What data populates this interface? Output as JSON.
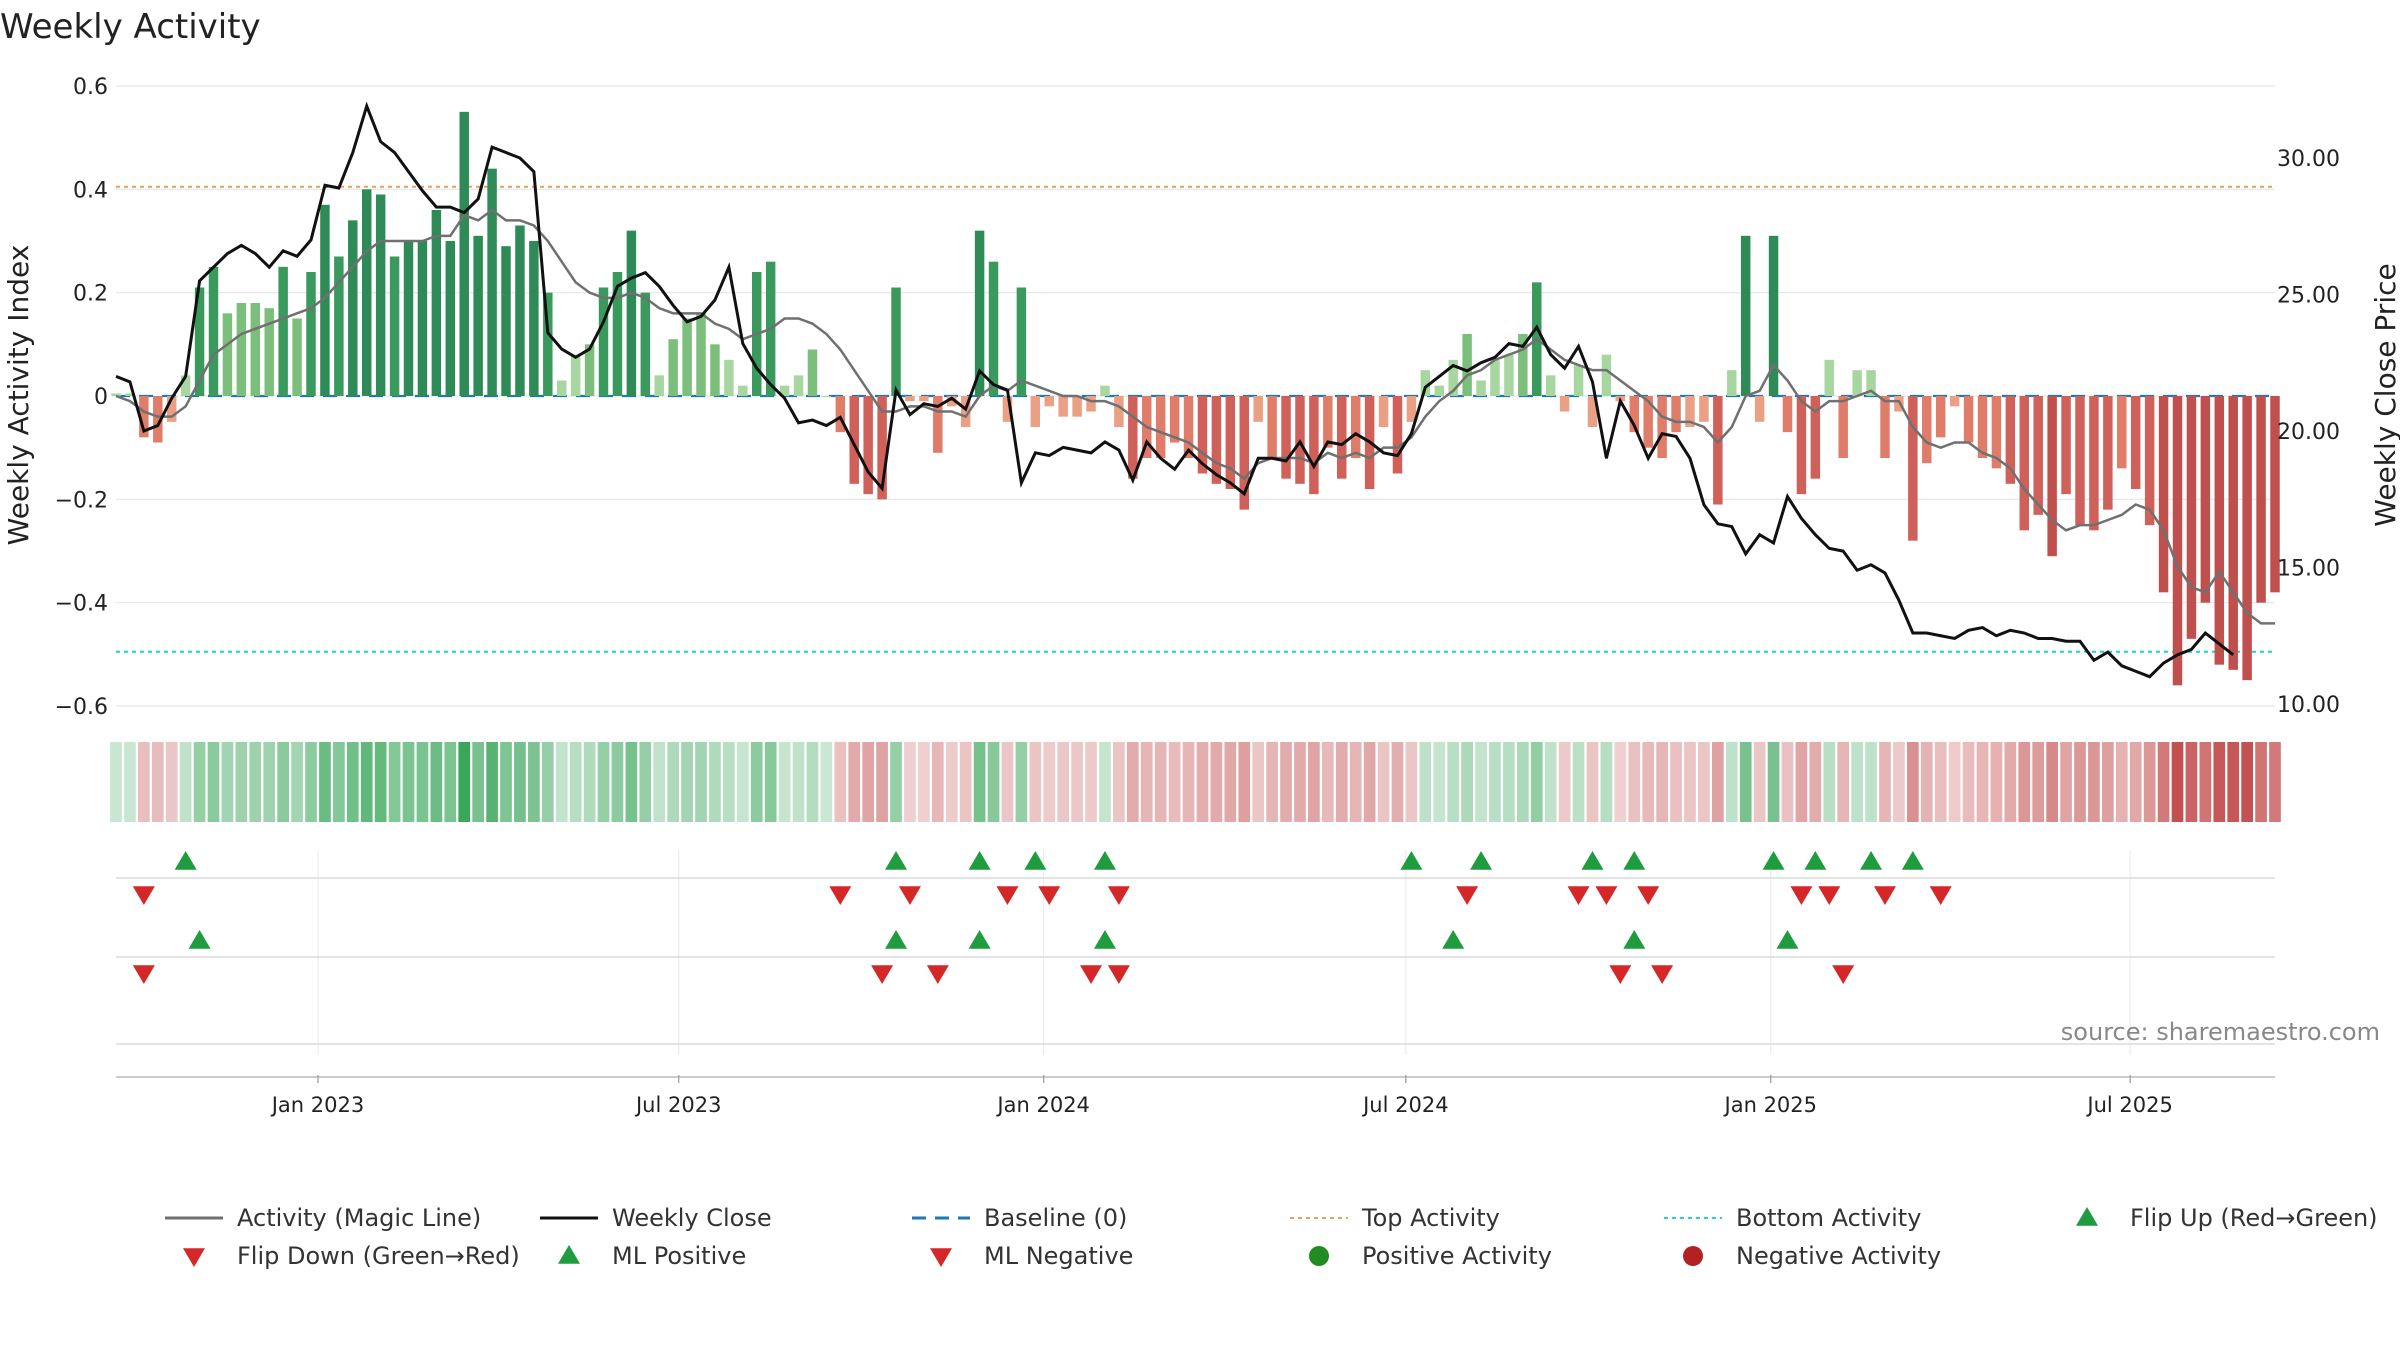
{
  "chart_data": {
    "type": "bar",
    "title": "Weekly Activity",
    "ylabel": "Weekly Activity Index",
    "y2label": "Weekly Close Price",
    "ylim": [
      -0.6,
      0.6
    ],
    "y2lim": [
      10,
      32
    ],
    "yticks": [
      0.6,
      0.4,
      0.2,
      0,
      -0.2,
      -0.4,
      -0.6
    ],
    "ytick_labels": [
      "0.6",
      "0.4",
      "0.2",
      "0",
      "−0.2",
      "−0.4",
      "−0.6"
    ],
    "y2ticks": [
      30,
      25,
      20,
      15,
      10
    ],
    "y2tick_labels": [
      "30.00",
      "25.00",
      "20.00",
      "15.00",
      "10.00"
    ],
    "x_start": "2022-10-03",
    "week_count": 156,
    "xticks": [
      {
        "label": "Jan 2023",
        "week": 14.5
      },
      {
        "label": "Jul 2023",
        "week": 40.4
      },
      {
        "label": "Jan 2024",
        "week": 66.6
      },
      {
        "label": "Jul 2024",
        "week": 92.6
      },
      {
        "label": "Jan 2025",
        "week": 118.8
      },
      {
        "label": "Jul 2025",
        "week": 144.6
      }
    ],
    "top_activity": 0.405,
    "bottom_activity": -0.495,
    "baseline": 0,
    "values": [
      0.005,
      0.005,
      -0.08,
      -0.09,
      -0.05,
      0.04,
      0.21,
      0.25,
      0.16,
      0.18,
      0.18,
      0.17,
      0.25,
      0.15,
      0.24,
      0.37,
      0.27,
      0.34,
      0.4,
      0.39,
      0.27,
      0.3,
      0.3,
      0.36,
      0.3,
      0.55,
      0.31,
      0.44,
      0.29,
      0.33,
      0.3,
      0.2,
      0.03,
      0.08,
      0.1,
      0.21,
      0.24,
      0.32,
      0.2,
      0.04,
      0.11,
      0.15,
      0.16,
      0.1,
      0.07,
      0.02,
      0.24,
      0.26,
      0.02,
      0.04,
      0.09,
      0.0,
      -0.07,
      -0.17,
      -0.19,
      -0.2,
      0.21,
      -0.01,
      -0.01,
      -0.11,
      -0.02,
      -0.06,
      0.32,
      0.26,
      -0.05,
      0.21,
      -0.06,
      -0.02,
      -0.04,
      -0.04,
      -0.03,
      0.02,
      -0.06,
      -0.16,
      -0.12,
      -0.12,
      -0.09,
      -0.12,
      -0.15,
      -0.17,
      -0.18,
      -0.22,
      -0.05,
      -0.12,
      -0.16,
      -0.17,
      -0.19,
      -0.1,
      -0.16,
      -0.12,
      -0.18,
      -0.06,
      -0.15,
      -0.05,
      0.05,
      0.02,
      0.07,
      0.12,
      0.03,
      0.07,
      0.08,
      0.12,
      0.22,
      0.04,
      -0.03,
      0.06,
      -0.06,
      0.08,
      -0.01,
      -0.07,
      -0.1,
      -0.12,
      -0.07,
      -0.06,
      -0.05,
      -0.21,
      0.05,
      0.31,
      -0.05,
      0.31,
      -0.07,
      -0.19,
      -0.16,
      0.07,
      -0.12,
      0.05,
      0.05,
      -0.12,
      -0.03,
      -0.28,
      -0.13,
      -0.08,
      -0.02,
      -0.09,
      -0.12,
      -0.14,
      -0.17,
      -0.26,
      -0.23,
      -0.31,
      -0.19,
      -0.25,
      -0.26,
      -0.22,
      -0.14,
      -0.18,
      -0.25,
      -0.38,
      -0.56,
      -0.47,
      -0.4,
      -0.52,
      -0.53,
      -0.55,
      -0.4,
      -0.38
    ],
    "magic_line": [
      0.0,
      -0.01,
      -0.03,
      -0.04,
      -0.04,
      -0.02,
      0.03,
      0.08,
      0.1,
      0.12,
      0.13,
      0.14,
      0.15,
      0.16,
      0.17,
      0.19,
      0.22,
      0.25,
      0.28,
      0.3,
      0.3,
      0.3,
      0.3,
      0.31,
      0.31,
      0.35,
      0.34,
      0.36,
      0.34,
      0.34,
      0.33,
      0.3,
      0.26,
      0.22,
      0.2,
      0.19,
      0.19,
      0.2,
      0.19,
      0.17,
      0.16,
      0.16,
      0.16,
      0.14,
      0.13,
      0.11,
      0.12,
      0.13,
      0.15,
      0.15,
      0.14,
      0.12,
      0.09,
      0.05,
      0.01,
      -0.03,
      -0.03,
      -0.02,
      -0.02,
      -0.03,
      -0.03,
      -0.04,
      0.0,
      0.02,
      0.01,
      0.03,
      0.02,
      0.01,
      0.0,
      0.0,
      -0.01,
      -0.01,
      -0.02,
      -0.04,
      -0.06,
      -0.07,
      -0.08,
      -0.09,
      -0.11,
      -0.13,
      -0.14,
      -0.16,
      -0.13,
      -0.12,
      -0.12,
      -0.12,
      -0.13,
      -0.11,
      -0.12,
      -0.11,
      -0.12,
      -0.1,
      -0.1,
      -0.08,
      -0.04,
      -0.01,
      0.01,
      0.04,
      0.05,
      0.07,
      0.08,
      0.09,
      0.11,
      0.09,
      0.07,
      0.06,
      0.05,
      0.05,
      0.03,
      0.01,
      -0.01,
      -0.04,
      -0.05,
      -0.05,
      -0.06,
      -0.09,
      -0.06,
      0.0,
      0.01,
      0.06,
      0.03,
      -0.01,
      -0.03,
      -0.01,
      -0.01,
      0.0,
      0.01,
      -0.01,
      -0.01,
      -0.06,
      -0.09,
      -0.1,
      -0.09,
      -0.09,
      -0.11,
      -0.12,
      -0.14,
      -0.18,
      -0.21,
      -0.24,
      -0.26,
      -0.25,
      -0.25,
      -0.24,
      -0.23,
      -0.21,
      -0.22,
      -0.26,
      -0.33,
      -0.37,
      -0.38,
      -0.34,
      -0.38,
      -0.42,
      -0.44,
      -0.44
    ],
    "weekly_close": [
      22.0,
      21.8,
      20.0,
      20.2,
      21.2,
      22.0,
      25.5,
      26.0,
      26.5,
      26.8,
      26.5,
      26.0,
      26.6,
      26.4,
      27.0,
      29.0,
      28.9,
      30.2,
      31.9,
      30.6,
      30.2,
      29.5,
      28.8,
      28.2,
      28.2,
      28.0,
      28.5,
      30.4,
      30.2,
      30.0,
      29.5,
      23.6,
      23.0,
      22.7,
      23.0,
      24.0,
      25.3,
      25.6,
      25.8,
      25.3,
      24.6,
      24.0,
      24.2,
      24.8,
      26.0,
      23.2,
      22.3,
      21.7,
      21.2,
      20.3,
      20.4,
      20.2,
      20.5,
      19.5,
      18.5,
      17.9,
      21.5,
      20.6,
      21.0,
      20.9,
      21.2,
      20.8,
      22.2,
      21.7,
      21.5,
      18.1,
      19.2,
      19.1,
      19.4,
      19.3,
      19.2,
      19.6,
      19.3,
      18.2,
      19.6,
      19.0,
      18.6,
      19.3,
      18.8,
      18.4,
      18.1,
      17.7,
      19.0,
      19.0,
      18.9,
      19.6,
      18.7,
      19.6,
      19.5,
      19.9,
      19.6,
      19.2,
      19.1,
      19.9,
      21.6,
      22.0,
      22.4,
      22.2,
      22.5,
      22.7,
      23.2,
      23.1,
      23.8,
      22.8,
      22.3,
      23.1,
      21.8,
      19.0,
      21.1,
      20.2,
      19.0,
      19.9,
      19.8,
      19.0,
      17.3,
      16.6,
      16.5,
      15.5,
      16.2,
      15.9,
      17.6,
      16.8,
      16.2,
      15.7,
      15.6,
      14.9,
      15.1,
      14.8,
      13.8,
      12.6,
      12.6,
      12.5,
      12.4,
      12.7,
      12.8,
      12.5,
      12.7,
      12.6,
      12.4,
      12.4,
      12.3,
      12.3,
      11.6,
      11.9,
      11.4,
      11.2,
      11.0,
      11.5,
      11.8,
      12.0,
      12.6,
      12.2,
      11.8
    ],
    "heat_strip": "per-week colour strip mirroring activity (green = positive, red = negative)",
    "flip_up_weeks": [
      5,
      56,
      62,
      66,
      71,
      93,
      98,
      106,
      109,
      119,
      122,
      126,
      129
    ],
    "flip_down_weeks": [
      2,
      52,
      57,
      64,
      67,
      72,
      97,
      105,
      107,
      110,
      121,
      123,
      127,
      131
    ],
    "ml_positive_weeks": [
      6,
      56,
      62,
      71,
      96,
      109,
      120
    ],
    "ml_negative_weeks": [
      2,
      55,
      59,
      70,
      72,
      108,
      111,
      124
    ],
    "legend": [
      {
        "label": "Activity (Magic Line)",
        "kind": "line",
        "color": "#707070"
      },
      {
        "label": "Weekly Close",
        "kind": "line",
        "color": "#111111"
      },
      {
        "label": "Baseline (0)",
        "kind": "dash",
        "color": "#1f77b4"
      },
      {
        "label": "Top Activity",
        "kind": "dot",
        "color": "#e8a05a"
      },
      {
        "label": "Bottom Activity",
        "kind": "dot",
        "color": "#22cfd6"
      },
      {
        "label": "Flip Up (Red→Green)",
        "kind": "tri-up",
        "color": "#1e9c3e"
      },
      {
        "label": "Flip Down (Green→Red)",
        "kind": "tri-down",
        "color": "#d62728"
      },
      {
        "label": "ML Positive",
        "kind": "tri-up",
        "color": "#1e9c3e"
      },
      {
        "label": "ML Negative",
        "kind": "tri-down",
        "color": "#d62728"
      },
      {
        "label": "Positive Activity",
        "kind": "circle",
        "color": "#228b22"
      },
      {
        "label": "Negative Activity",
        "kind": "circle",
        "color": "#b22222"
      }
    ],
    "source": "source: sharemaestro.com"
  }
}
